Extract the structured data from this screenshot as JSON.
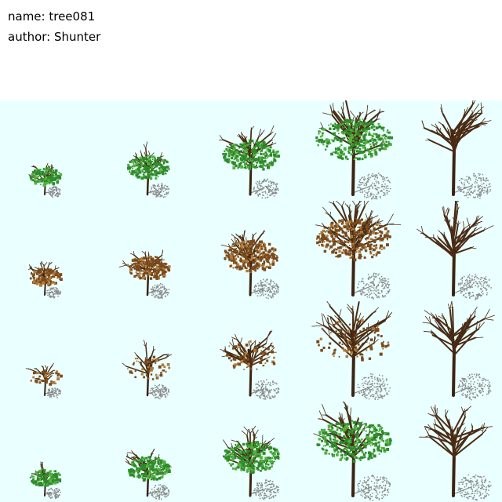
{
  "header": {
    "name_line": "name: tree081",
    "author_line": "author: Shunter"
  },
  "colors": {
    "background": "#eaffff",
    "trunk": "#3b2412",
    "green_canopy": "#2f8a2a",
    "green_highlight": "#55b03f",
    "brown_canopy": "#7a4a1c",
    "brown_highlight": "#b07a3a",
    "bare_branch": "#4a2c14",
    "shadow": "#8a8a8a"
  },
  "sprite_sheet": {
    "columns": 5,
    "rows": 4,
    "rows_data": [
      {
        "row": "summer",
        "sprites": [
          {
            "size": 1,
            "foliage": "green"
          },
          {
            "size": 2,
            "foliage": "green"
          },
          {
            "size": 3,
            "foliage": "green"
          },
          {
            "size": 4,
            "foliage": "green"
          },
          {
            "size": 4,
            "foliage": "bare"
          }
        ]
      },
      {
        "row": "autumn",
        "sprites": [
          {
            "size": 1,
            "foliage": "brown"
          },
          {
            "size": 2,
            "foliage": "brown"
          },
          {
            "size": 3,
            "foliage": "brown"
          },
          {
            "size": 4,
            "foliage": "brown"
          },
          {
            "size": 4,
            "foliage": "bare"
          }
        ]
      },
      {
        "row": "winter",
        "sprites": [
          {
            "size": 1,
            "foliage": "sparse"
          },
          {
            "size": 2,
            "foliage": "sparse"
          },
          {
            "size": 3,
            "foliage": "sparse"
          },
          {
            "size": 4,
            "foliage": "sparse"
          },
          {
            "size": 4,
            "foliage": "bare"
          }
        ]
      },
      {
        "row": "spring",
        "sprites": [
          {
            "size": 1,
            "foliage": "green"
          },
          {
            "size": 2,
            "foliage": "green"
          },
          {
            "size": 3,
            "foliage": "green"
          },
          {
            "size": 4,
            "foliage": "green"
          },
          {
            "size": 4,
            "foliage": "bare"
          }
        ]
      }
    ]
  }
}
